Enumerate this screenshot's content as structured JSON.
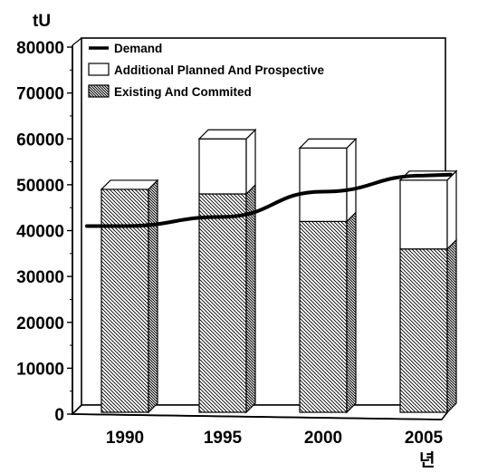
{
  "chart_data": {
    "type": "bar",
    "stacked": true,
    "three_d": true,
    "categories": [
      "1990",
      "1995",
      "2000",
      "2005"
    ],
    "series": [
      {
        "name": "Existing And Commited",
        "kind": "bar",
        "pattern": "hatched",
        "values": [
          49000,
          48000,
          42000,
          36000
        ]
      },
      {
        "name": "Additional Planned And Prospective",
        "kind": "bar",
        "pattern": "open",
        "values": [
          0,
          12000,
          16000,
          15000
        ]
      },
      {
        "name": "Demand",
        "kind": "line",
        "values": [
          41000,
          43000,
          48500,
          52000
        ]
      }
    ],
    "ylabel": "tU",
    "xlabel": "년",
    "ylim": [
      0,
      80000
    ],
    "yticks": [
      "0",
      "10000",
      "20000",
      "30000",
      "40000",
      "50000",
      "60000",
      "70000",
      "80000"
    ],
    "grid": false,
    "legend_position": "top-left",
    "colors": {
      "line": "#000000",
      "fill": "#ffffff",
      "hatch": "#000000"
    }
  }
}
